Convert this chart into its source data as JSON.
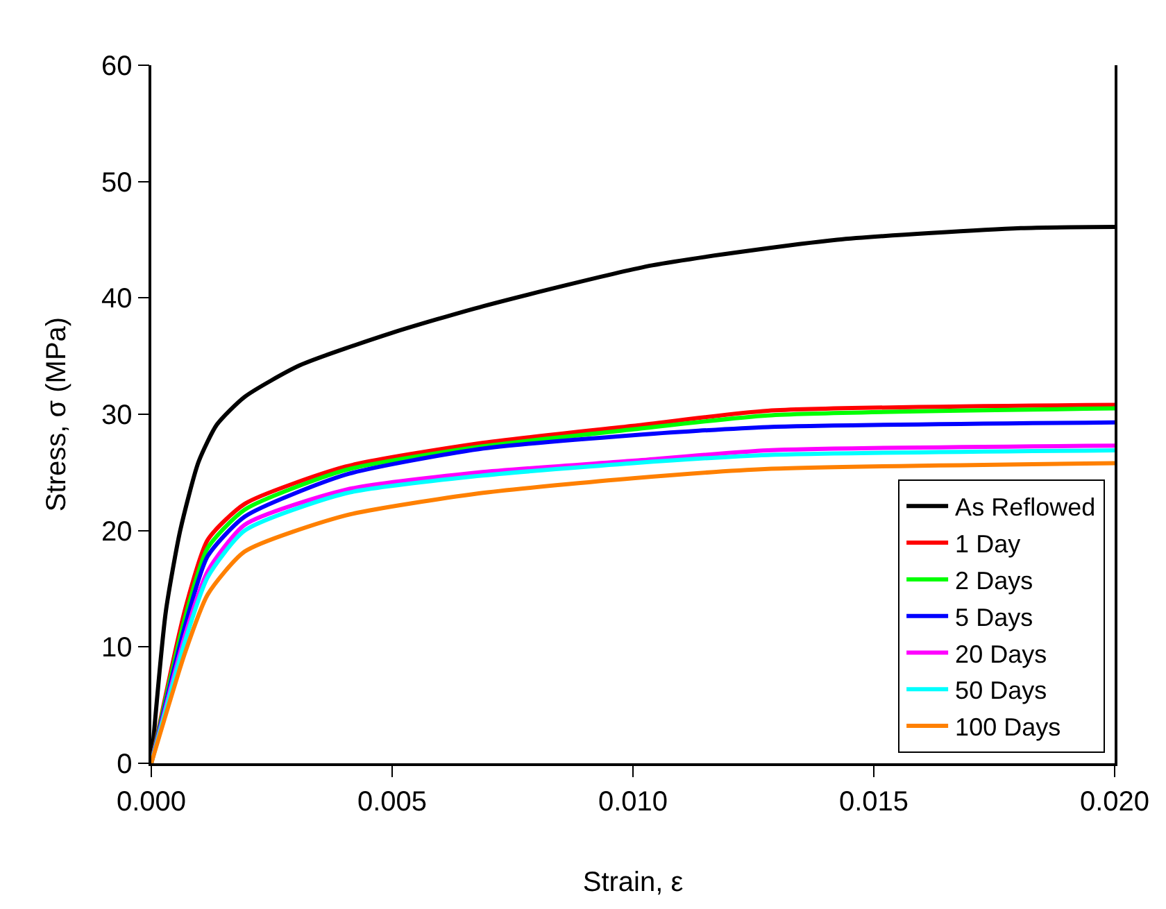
{
  "chart_data": {
    "type": "line",
    "xlabel": "Strain, ε",
    "ylabel": "Stress, σ (MPa)",
    "xlim": [
      0,
      0.02
    ],
    "ylim": [
      0,
      60
    ],
    "xticks": [
      {
        "value": 0,
        "label": "0.000"
      },
      {
        "value": 0.005,
        "label": "0.005"
      },
      {
        "value": 0.01,
        "label": "0.010"
      },
      {
        "value": 0.015,
        "label": "0.015"
      },
      {
        "value": 0.02,
        "label": "0.020"
      }
    ],
    "yticks": [
      0,
      10,
      20,
      30,
      40,
      50,
      60
    ],
    "grid": false,
    "legend": "bottom right",
    "marker": "none",
    "line_style": "solid",
    "series": [
      {
        "name": "As Reflowed",
        "color": "#000000",
        "x": [
          0,
          0.0003,
          0.0006,
          0.00098,
          0.00136,
          0.00194,
          0.00308,
          0.005,
          0.0069,
          0.0104,
          0.01424,
          0.01805,
          0.02
        ],
        "values": [
          0,
          13,
          20,
          25.9,
          29.1,
          31.5,
          34.2,
          37,
          39.3,
          42.8,
          45,
          46,
          46.1
        ]
      },
      {
        "name": "1 Day",
        "color": "#ff0000",
        "x": [
          0,
          0.0007,
          0.00117,
          0.00194,
          0.00403,
          0.0068,
          0.01,
          0.0128,
          0.02
        ],
        "values": [
          0,
          13.2,
          19.2,
          22.3,
          25.5,
          27.5,
          29,
          30.3,
          30.8
        ]
      },
      {
        "name": "2 Days",
        "color": "#00ff00",
        "x": [
          0,
          0.0007,
          0.00117,
          0.00194,
          0.00403,
          0.0068,
          0.01,
          0.0128,
          0.02
        ],
        "values": [
          0,
          12.5,
          18.5,
          21.8,
          25.2,
          27.2,
          28.7,
          29.9,
          30.5
        ]
      },
      {
        "name": "5 Days",
        "color": "#0000ff",
        "x": [
          0,
          0.0007,
          0.00117,
          0.00194,
          0.00403,
          0.0068,
          0.01,
          0.0128,
          0.02
        ],
        "values": [
          0,
          11.8,
          17.8,
          21.2,
          24.8,
          27,
          28.2,
          28.9,
          29.3
        ]
      },
      {
        "name": "20 Days",
        "color": "#ff00ff",
        "x": [
          0,
          0.0007,
          0.00117,
          0.00194,
          0.00403,
          0.0068,
          0.01,
          0.0128,
          0.02
        ],
        "values": [
          0,
          11,
          16.5,
          20.5,
          23.5,
          25,
          26,
          26.9,
          27.3
        ]
      },
      {
        "name": "50 Days",
        "color": "#00ffff",
        "x": [
          0,
          0.0007,
          0.00117,
          0.00194,
          0.00403,
          0.0068,
          0.01,
          0.0128,
          0.02
        ],
        "values": [
          0,
          10.5,
          16,
          20,
          23.2,
          24.7,
          25.8,
          26.5,
          26.9
        ]
      },
      {
        "name": "100 Days",
        "color": "#ff8000",
        "x": [
          0,
          0.0007,
          0.00117,
          0.00194,
          0.00403,
          0.0068,
          0.01,
          0.0128,
          0.02
        ],
        "values": [
          0,
          9.5,
          14.5,
          18.2,
          21.3,
          23.2,
          24.5,
          25.3,
          25.8
        ]
      }
    ]
  }
}
